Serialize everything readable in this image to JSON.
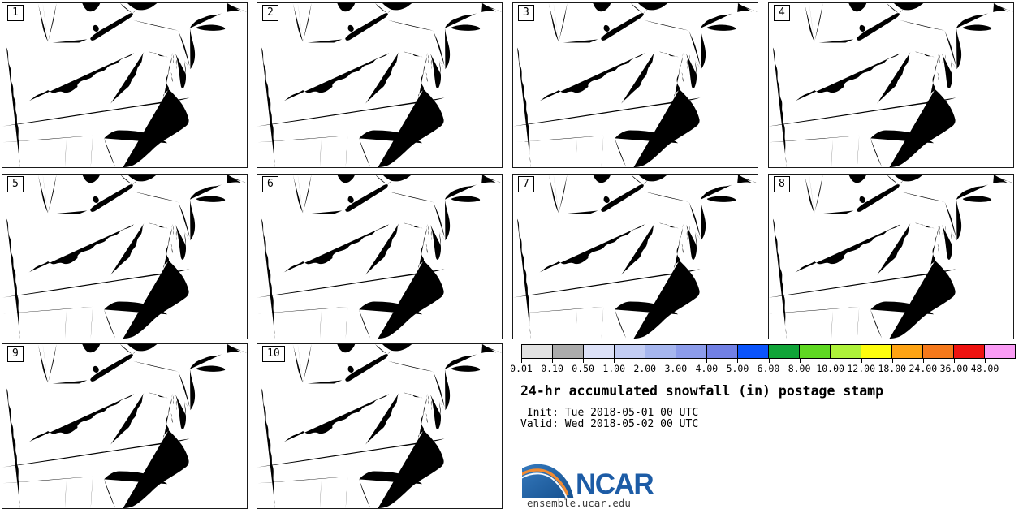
{
  "page": {
    "background": "#ffffff"
  },
  "panels": [
    {
      "number": "1"
    },
    {
      "number": "2"
    },
    {
      "number": "3"
    },
    {
      "number": "4"
    },
    {
      "number": "5"
    },
    {
      "number": "6"
    },
    {
      "number": "7"
    },
    {
      "number": "8"
    },
    {
      "number": "9"
    },
    {
      "number": "10"
    }
  ],
  "colorbar": {
    "labels": [
      "0.01",
      "0.10",
      "0.50",
      "1.00",
      "2.00",
      "3.00",
      "4.00",
      "5.00",
      "6.00",
      "8.00",
      "10.00",
      "12.00",
      "18.00",
      "24.00",
      "36.00",
      "48.00"
    ],
    "colors": [
      "#e2e2e2",
      "#ababab",
      "#dce1f7",
      "#c3cdf3",
      "#a6b6ee",
      "#8c9cea",
      "#7180e4",
      "#0b54fb",
      "#10a438",
      "#5fd822",
      "#aef23a",
      "#fdfd0e",
      "#fda313",
      "#f5791b",
      "#ee1310",
      "#fa9cf5"
    ]
  },
  "caption": {
    "title": "24-hr accumulated snowfall (in) postage stamp",
    "init_line": " Init: Tue 2018-05-01 00 UTC",
    "valid_line": "Valid: Wed 2018-05-02 00 UTC"
  },
  "logo": {
    "name": "NCAR",
    "url": "ensemble.ucar.edu",
    "blue": "#1d5ca6",
    "blue_light": "#3579bd",
    "blue_dark": "#15508e",
    "orange": "#f18b32"
  }
}
